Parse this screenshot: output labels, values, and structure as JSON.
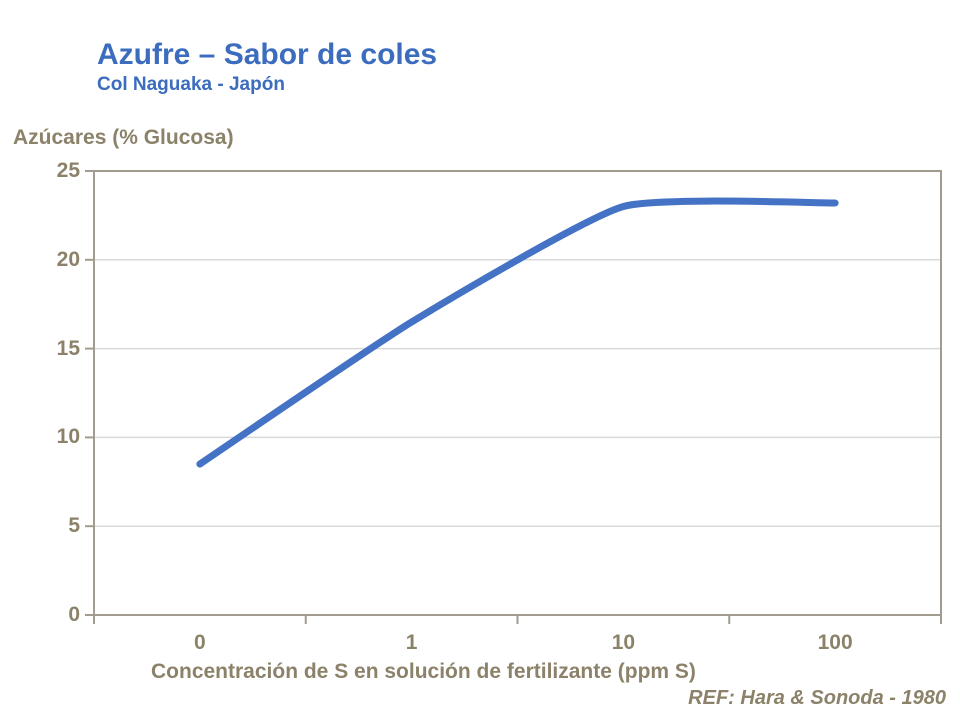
{
  "header": {
    "title": "Azufre – Sabor de coles",
    "subtitle": "Col Naguaka - Japón"
  },
  "chart_data": {
    "type": "line",
    "title": "Azufre – Sabor de coles",
    "subtitle": "Col Naguaka - Japón",
    "categories": [
      "0",
      "1",
      "10",
      "100"
    ],
    "series": [
      {
        "name": "Azúcares",
        "values": [
          8.5,
          16.5,
          23.0,
          23.2
        ]
      }
    ],
    "xlabel": "Concentración de S en solución de fertilizante (ppm S)",
    "ylabel": "Azúcares (% Glucosa)",
    "ylim": [
      0,
      25
    ],
    "yticks": [
      0,
      5,
      10,
      15,
      20,
      25
    ],
    "grid": true,
    "legend": "none",
    "x_axis_type": "category",
    "smoothed_line": true
  },
  "footer": {
    "ref": "REF: Hara & Sonoda - 1980"
  },
  "colors": {
    "title_blue": "#3B6CBE",
    "line_blue": "#4472C4",
    "axis_text": "#8B8269",
    "axis_line": "#A29C90",
    "gridline": "#D9D9D9",
    "background": "#FFFFFF"
  }
}
